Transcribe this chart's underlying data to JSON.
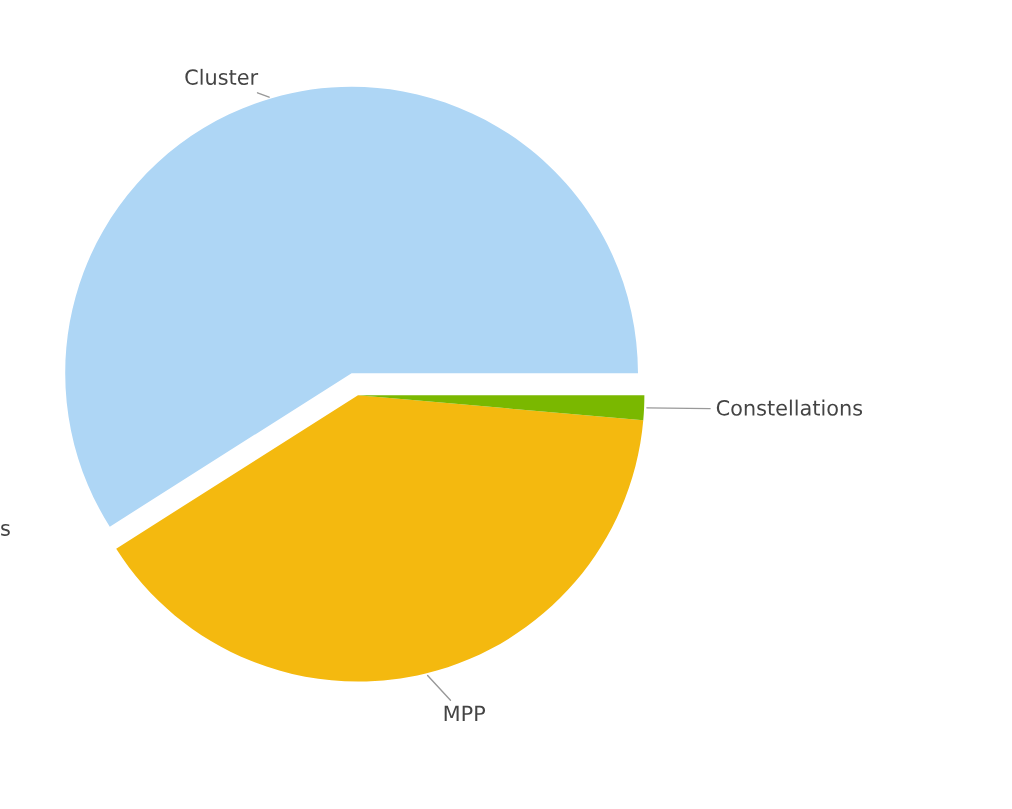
{
  "chart_data": {
    "type": "pie",
    "categories": [
      "Cluster",
      "MPP",
      "Constellations"
    ],
    "values": [
      59,
      39.6,
      1.4
    ],
    "colors": [
      "#aed6f5",
      "#f4b90f",
      "#7ab800"
    ],
    "annotations": [
      "s"
    ]
  }
}
